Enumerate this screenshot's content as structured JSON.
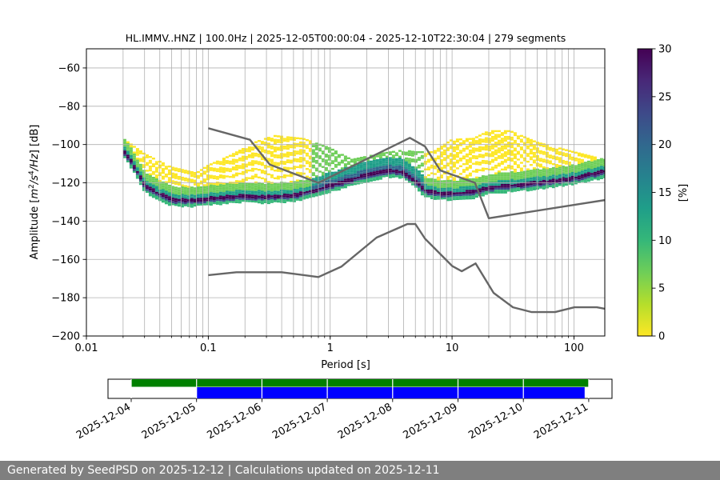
{
  "chart_data": [
    {
      "type": "heatmap",
      "title": "HL.IMMV..HNZ | 100.0Hz | 2025-12-05T00:00:04 - 2025-12-10T22:30:04 | 279 segments",
      "xlabel": "Period [s]",
      "ylabel_parts": [
        "Amplitude [",
        "m",
        "2",
        "/",
        "s",
        "4",
        "/",
        "Hz",
        "] [dB]"
      ],
      "x_scale": "log",
      "xlim": [
        0.01,
        179
      ],
      "ylim": [
        -200,
        -50
      ],
      "x_ticks": [
        {
          "value": 0.01,
          "label": "0.01"
        },
        {
          "value": 0.1,
          "label": "0.1"
        },
        {
          "value": 1,
          "label": "1"
        },
        {
          "value": 10,
          "label": "10"
        },
        {
          "value": 100,
          "label": "100"
        }
      ],
      "y_ticks": [
        {
          "value": -60,
          "label": "−60"
        },
        {
          "value": -80,
          "label": "−80"
        },
        {
          "value": -100,
          "label": "−100"
        },
        {
          "value": -120,
          "label": "−120"
        },
        {
          "value": -140,
          "label": "−140"
        },
        {
          "value": -160,
          "label": "−160"
        },
        {
          "value": -180,
          "label": "−180"
        },
        {
          "value": -200,
          "label": "−200"
        }
      ],
      "vertical_gridlines": [
        0.02,
        0.03,
        0.04,
        0.05,
        0.06,
        0.07,
        0.08,
        0.09,
        0.1,
        0.2,
        0.3,
        0.4,
        0.5,
        0.6,
        0.7,
        0.8,
        0.9,
        1,
        2,
        3,
        4,
        5,
        6,
        7,
        8,
        9,
        10,
        20,
        30,
        40,
        50,
        60,
        70,
        80,
        90,
        100
      ],
      "horizontal_grid": true,
      "colorbar": {
        "label": "[%]",
        "range": [
          0,
          30
        ],
        "ticks": [
          {
            "value": 0,
            "label": "0"
          },
          {
            "value": 5,
            "label": "5"
          },
          {
            "value": 10,
            "label": "10"
          },
          {
            "value": 15,
            "label": "15"
          },
          {
            "value": 20,
            "label": "20"
          },
          {
            "value": 25,
            "label": "25"
          },
          {
            "value": 30,
            "label": "30"
          }
        ],
        "colormap": "viridis_r",
        "colors": [
          "#fde725",
          "#b5de2b",
          "#6ece58",
          "#35b779",
          "#1f9e89",
          "#26828e",
          "#31688e",
          "#3e4989",
          "#482878",
          "#440154"
        ]
      },
      "noise_models": [
        {
          "points": [
            [
              0.1,
              -91.5
            ],
            [
              0.22,
              -97.5
            ],
            [
              0.32,
              -110.5
            ],
            [
              0.8,
              -120
            ],
            [
              4.5,
              -96.5
            ],
            [
              6,
              -101
            ],
            [
              8,
              -113.5
            ],
            [
              15.4,
              -120
            ],
            [
              20,
              -138.5
            ],
            [
              179,
              -129
            ]
          ]
        },
        {
          "points": [
            [
              0.1,
              -168.2
            ],
            [
              0.17,
              -166.7
            ],
            [
              0.4,
              -166.7
            ],
            [
              0.8,
              -169.2
            ],
            [
              1.24,
              -163.7
            ],
            [
              2.4,
              -148.6
            ],
            [
              4.3,
              -141.5
            ],
            [
              5.0,
              -141.5
            ],
            [
              6.0,
              -149.2
            ],
            [
              10.0,
              -163.4
            ],
            [
              12.0,
              -166.2
            ],
            [
              15.6,
              -162.1
            ],
            [
              21.9,
              -177.5
            ],
            [
              31.6,
              -185.0
            ],
            [
              45.0,
              -187.5
            ],
            [
              70.0,
              -187.5
            ],
            [
              101.0,
              -185.0
            ],
            [
              154.0,
              -185.0
            ],
            [
              179.0,
              -185.8
            ]
          ]
        }
      ],
      "psd_modes": [
        [
          0.02,
          -103
        ],
        [
          0.023,
          -108
        ],
        [
          0.026,
          -114
        ],
        [
          0.03,
          -121
        ],
        [
          0.035,
          -124
        ],
        [
          0.04,
          -126
        ],
        [
          0.05,
          -128.5
        ],
        [
          0.06,
          -129.2
        ],
        [
          0.08,
          -129
        ],
        [
          0.1,
          -128.3
        ],
        [
          0.15,
          -127.4
        ],
        [
          0.2,
          -126.8
        ],
        [
          0.3,
          -127.3
        ],
        [
          0.5,
          -126.5
        ],
        [
          0.8,
          -123.5
        ],
        [
          1.2,
          -120
        ],
        [
          2,
          -116
        ],
        [
          3,
          -113.5
        ],
        [
          4,
          -114.5
        ],
        [
          5,
          -119
        ],
        [
          6,
          -124
        ],
        [
          8,
          -125.5
        ],
        [
          10,
          -125.7
        ],
        [
          15,
          -124.8
        ],
        [
          20,
          -122.5
        ],
        [
          30,
          -121.5
        ],
        [
          50,
          -120
        ],
        [
          70,
          -119
        ],
        [
          100,
          -117.5
        ],
        [
          150,
          -115
        ],
        [
          179,
          -114
        ]
      ],
      "psd_upper": [
        [
          0.02,
          -97
        ],
        [
          0.03,
          -105
        ],
        [
          0.05,
          -112
        ],
        [
          0.08,
          -115
        ],
        [
          0.1,
          -111
        ],
        [
          0.15,
          -106
        ],
        [
          0.25,
          -98.5
        ],
        [
          0.35,
          -95.5
        ],
        [
          0.6,
          -97
        ],
        [
          1,
          -102
        ],
        [
          1.5,
          -108
        ],
        [
          2.5,
          -105
        ],
        [
          4,
          -103
        ],
        [
          5,
          -104
        ],
        [
          7,
          -104
        ],
        [
          10,
          -97.5
        ],
        [
          15,
          -97
        ],
        [
          20,
          -93
        ],
        [
          30,
          -93
        ],
        [
          50,
          -99
        ],
        [
          100,
          -104
        ],
        [
          179,
          -108
        ]
      ]
    },
    {
      "type": "timeline",
      "x_ticks": [
        "2025-12-04",
        "2025-12-05",
        "2025-12-06",
        "2025-12-07",
        "2025-12-08",
        "2025-12-09",
        "2025-12-10",
        "2025-12-11"
      ],
      "bars": [
        {
          "color": "#008000",
          "segments": [
            [
              "2025-12-04T00:00:00",
              "2025-12-11T00:00:00"
            ]
          ]
        },
        {
          "color": "#0000ff",
          "segments": [
            [
              "2025-12-05T00:00:04",
              "2025-12-06T00:00:00"
            ],
            [
              "2025-12-06T00:00:00",
              "2025-12-09T00:00:00"
            ],
            [
              "2025-12-09T00:00:00",
              "2025-12-10T22:30:04"
            ]
          ]
        }
      ]
    }
  ],
  "footer": {
    "text": "Generated by SeedPSD on 2025-12-12 | Calculations updated on 2025-12-11"
  }
}
